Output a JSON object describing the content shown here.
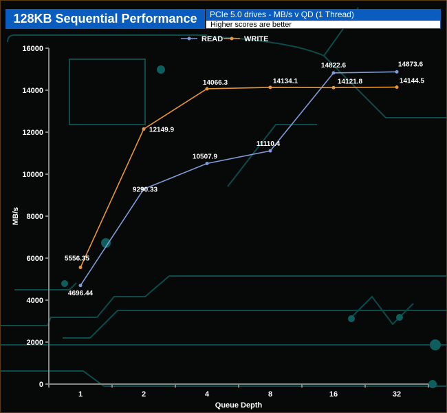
{
  "header": {
    "title": "128KB Sequential Performance",
    "subtitle": "PCIe 5.0 drives - MB/s v QD (1 Thread)",
    "note": "Higher scores are better"
  },
  "chart_data": {
    "type": "line",
    "xlabel": "Queue Depth",
    "ylabel": "MB/s",
    "categories": [
      "1",
      "2",
      "4",
      "8",
      "16",
      "32"
    ],
    "ylim": [
      0,
      16000
    ],
    "yticks": [
      0,
      2000,
      4000,
      6000,
      8000,
      10000,
      12000,
      14000,
      16000
    ],
    "legend": "top-center",
    "grid": false,
    "series": [
      {
        "name": "READ",
        "color": "#7f9bd6",
        "values": [
          4696.44,
          9290.33,
          10507.9,
          11110.4,
          14822.6,
          14873.6
        ],
        "labels": [
          "4696.44",
          "9290.33",
          "10507.9",
          "11110.4",
          "14822.6",
          "14873.6"
        ]
      },
      {
        "name": "WRITE",
        "color": "#e8963a",
        "values": [
          5556.35,
          12149.9,
          14066.3,
          14134.1,
          14121.8,
          14144.5
        ],
        "labels": [
          "5556.35",
          "12149.9",
          "14066.3",
          "14134.1",
          "14121.8",
          "14144.5"
        ]
      }
    ]
  }
}
